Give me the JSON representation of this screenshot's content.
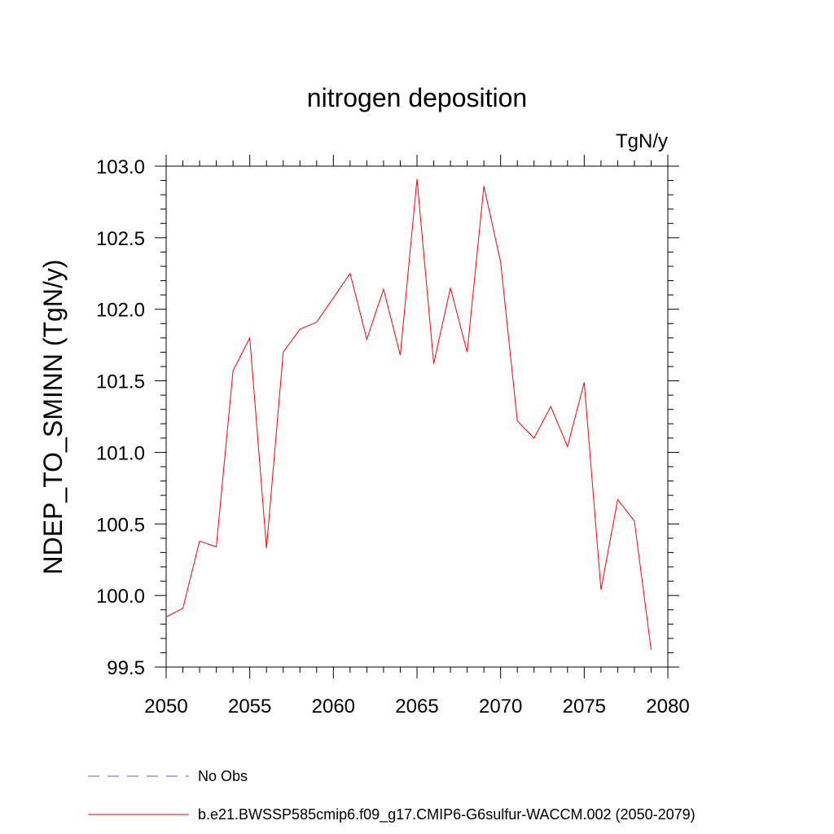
{
  "chart_data": {
    "type": "line",
    "title": "nitrogen deposition",
    "units_label": "TgN/y",
    "ylabel": "NDEP_TO_SMINN  (TgN/y)",
    "xlabel": "",
    "xlim": [
      2050,
      2080
    ],
    "ylim": [
      99.5,
      103.0
    ],
    "x_ticks": [
      2050,
      2055,
      2060,
      2065,
      2070,
      2075,
      2080
    ],
    "y_ticks": [
      "99.5",
      "100.0",
      "100.5",
      "101.0",
      "101.5",
      "102.0",
      "102.5",
      "103.0"
    ],
    "grid": false,
    "legend_position": "bottom",
    "legend": [
      {
        "label": "No Obs",
        "color": "#6a5acd",
        "style": "dashed"
      },
      {
        "label": "b.e21.BWSSP585cmip6.f09_g17.CMIP6-G6sulfur-WACCM.002 (2050-2079)",
        "color": "#ff0000",
        "style": "solid"
      }
    ],
    "series": [
      {
        "color": "#ff0000",
        "x": [
          2050,
          2051,
          2052,
          2053,
          2054,
          2055,
          2056,
          2057,
          2058,
          2059,
          2060,
          2061,
          2062,
          2063,
          2064,
          2065,
          2066,
          2067,
          2068,
          2069,
          2070,
          2071,
          2072,
          2073,
          2074,
          2075,
          2076,
          2077,
          2078,
          2079
        ],
        "values": [
          99.85,
          99.91,
          100.38,
          100.34,
          101.57,
          101.8,
          100.33,
          101.7,
          101.86,
          101.91,
          102.08,
          102.25,
          101.79,
          102.14,
          101.68,
          102.91,
          101.62,
          102.15,
          101.7,
          102.86,
          102.33,
          101.22,
          101.1,
          101.32,
          101.04,
          101.49,
          100.04,
          100.67,
          100.52,
          99.62
        ]
      }
    ]
  }
}
